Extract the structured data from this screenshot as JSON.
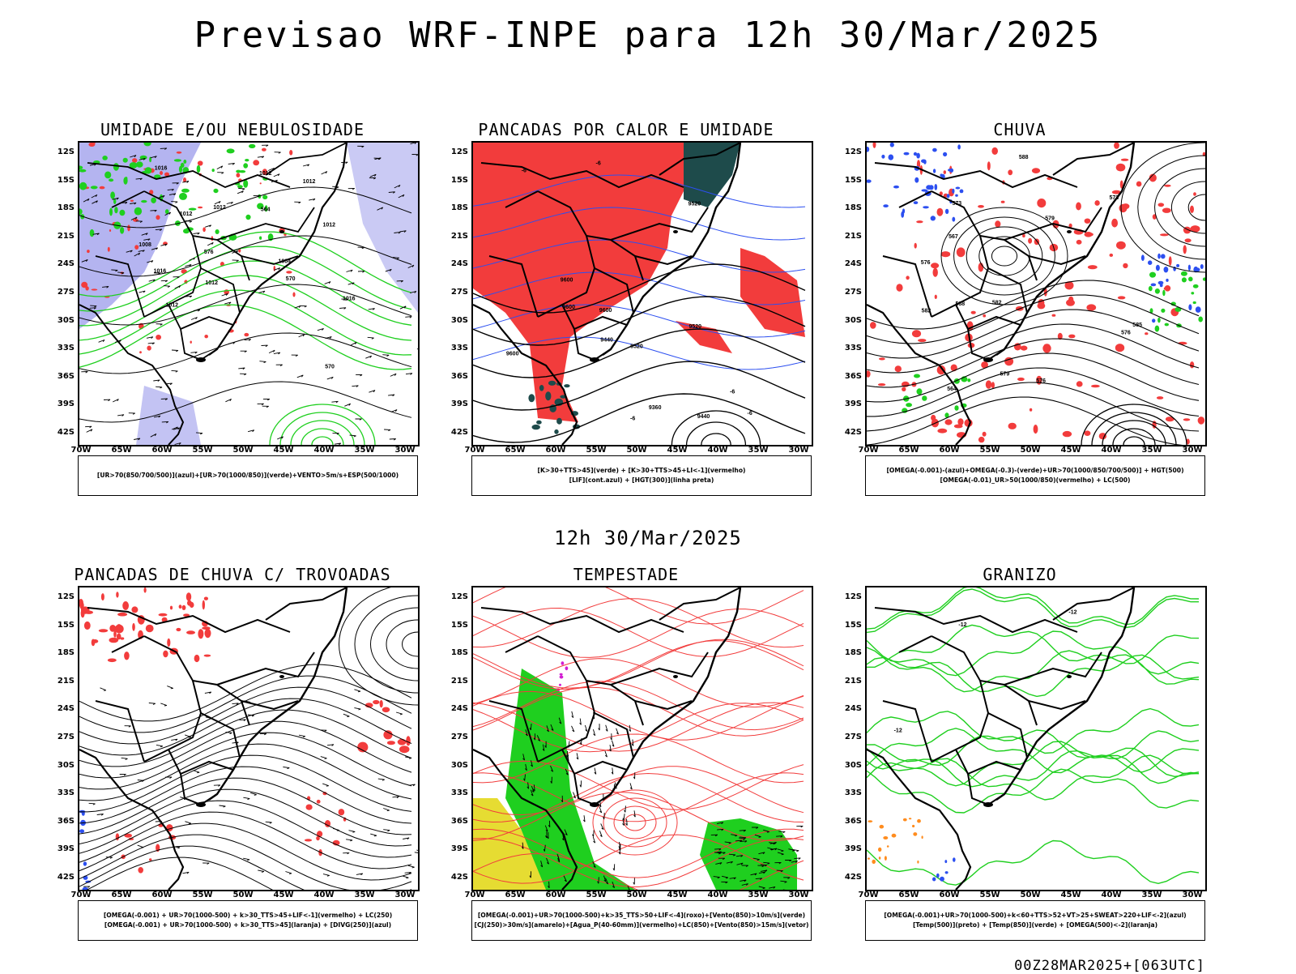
{
  "main_title": "Previsao WRF-INPE  para 12h 30/Mar/2025",
  "mid_title": "12h 30/Mar/2025",
  "footer": "00Z28MAR2025+[063UTC]",
  "lat_labels": [
    "12S",
    "15S",
    "18S",
    "21S",
    "24S",
    "27S",
    "30S",
    "33S",
    "36S",
    "39S",
    "42S"
  ],
  "lon_labels": [
    "70W",
    "65W",
    "60W",
    "55W",
    "50W",
    "45W",
    "40W",
    "35W",
    "30W"
  ],
  "colors": {
    "red": "#f23c3c",
    "green": "#1fcf1f",
    "blue": "#2c4ff0",
    "lavender": "#b4b4f0",
    "dark_teal": "#1e4b4b",
    "yellow": "#e6dc32",
    "orange": "#ff8c1e",
    "magenta": "#d21ed2"
  },
  "panels": [
    {
      "title": "UMIDADE E/OU NEBULOSIDADE",
      "legend": [
        "[UR>70(850/700/500)](azul)+[UR>70(1000/850)](verde)+VENTO>5m/s+ESP(500/1000)"
      ],
      "contour_labels": [
        "1012",
        "1012",
        "1012",
        "1012",
        "1004",
        "1008",
        "1012",
        "1016",
        "1016",
        "1012",
        "1016",
        "1012",
        "570",
        "576",
        "570",
        "564"
      ]
    },
    {
      "title": "PANCADAS POR CALOR E UMIDADE",
      "legend": [
        "[K>30+TTS>45](verde) + [K>30+TTS>45+LI<-1](vermelho)",
        "[LIF](cont.azul) + [HGT(300)](linha preta)"
      ],
      "contour_labels": [
        "9600",
        "9600",
        "9600",
        "9520",
        "9440",
        "9520",
        "9600",
        "9520",
        "9440",
        "9360",
        "-6",
        "-6",
        "-6",
        "-6",
        "-6"
      ]
    },
    {
      "title": "CHUVA",
      "legend": [
        "[OMEGA(-0.001)-(azul)+OMEGA(-0.3)-(verde)+UR>70(1000/850/700/500)] + HGT(500)",
        "[OMEGA(-0.01)_UR>50(1000/850)(vermelho) + LC(500)"
      ],
      "contour_labels": [
        "588",
        "588",
        "582",
        "585",
        "576",
        "576",
        "573",
        "567",
        "564",
        "582",
        "579",
        "576",
        "573",
        "579"
      ]
    },
    {
      "title": "PANCADAS DE CHUVA C/ TROVOADAS",
      "legend": [
        "[OMEGA(-0.001) + UR>70(1000-500) + k>30_TTS>45+LIF<-1](vermelho) + LC(250)",
        "[OMEGA(-0.001) + UR>70(1000-500) + k>30_TTS>45](laranja) + [DIVG(250)](azul)"
      ],
      "contour_labels": []
    },
    {
      "title": "TEMPESTADE",
      "legend": [
        "[OMEGA(-0.001)+UR>70(1000-500)+k>35_TTS>50+LIF<-4](roxo)+[Vento(850)>10m/s](verde)",
        "[CJ(250)>30m/s](amarelo)+[Agua_P(40-60mm)](vermelho)+LC(850)+[Vento(850)>15m/s](vetor)"
      ],
      "contour_labels": []
    },
    {
      "title": "GRANIZO",
      "legend": [
        "[OMEGA(-0.001)+UR>70(1000-500)+k<60+TTS>52+VT>25+SWEAT>220+LIF<-2](azul)",
        "[Temp(500)](preto) + [Temp(850)](verde) + [OMEGA(500)<-2](laranja)"
      ],
      "contour_labels": [
        "-12",
        "-12",
        "-12"
      ]
    }
  ]
}
